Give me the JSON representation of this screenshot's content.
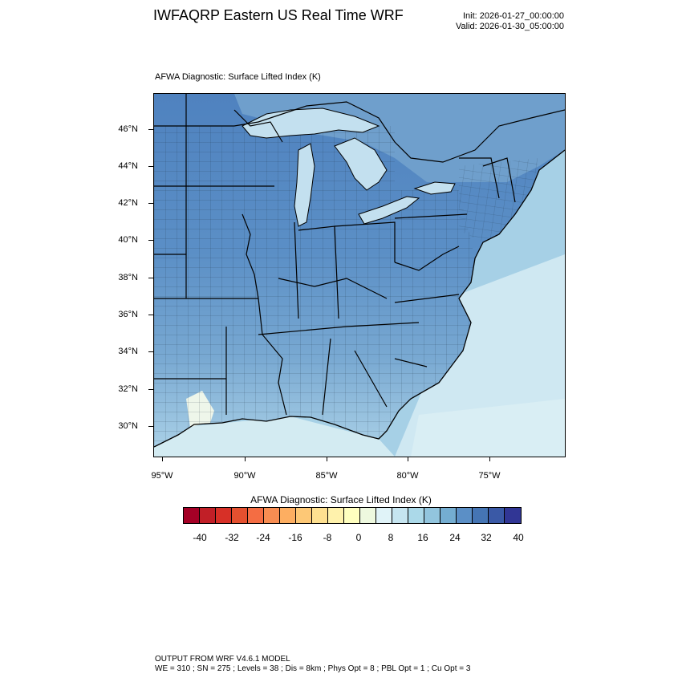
{
  "header": {
    "title": "IWFAQRP Eastern US Real Time WRF",
    "init": "Init: 2026-01-27_00:00:00",
    "valid": "Valid: 2026-01-30_05:00:00"
  },
  "map": {
    "subtitle": "AFWA Diagnostic: Surface Lifted Index   (K)",
    "lat_labels": [
      "46°N",
      "44°N",
      "42°N",
      "40°N",
      "38°N",
      "36°N",
      "34°N",
      "32°N",
      "30°N"
    ],
    "lon_labels": [
      "95°W",
      "90°W",
      "85°W",
      "80°W",
      "75°W"
    ],
    "colors": {
      "land_dark": "#4f82bf",
      "land_mid": "#79a9d2",
      "land_light": "#a8cfe6",
      "water_mid": "#8cbbdc",
      "water_light": "#cde8f2",
      "ocean_pale": "#d9eef4"
    }
  },
  "colorbar": {
    "title": "AFWA Diagnostic: Surface Lifted Index  (K)",
    "labels": [
      "-40",
      "-32",
      "-24",
      "-16",
      "-8",
      "0",
      "8",
      "16",
      "24",
      "32",
      "40"
    ],
    "colors": [
      "#a50026",
      "#c11f27",
      "#d73027",
      "#e4502f",
      "#f46d43",
      "#f88d52",
      "#fdae61",
      "#fdc876",
      "#fee090",
      "#fff2ac",
      "#ffffbf",
      "#eef9df",
      "#e0f3f8",
      "#c6e5f0",
      "#abd9e9",
      "#92c5de",
      "#74add1",
      "#5b8fc6",
      "#4575b4",
      "#3a59a6",
      "#313695"
    ]
  },
  "footer": {
    "line1": "OUTPUT FROM WRF V4.6.1 MODEL",
    "line2": "WE = 310 ; SN = 275 ; Levels = 38 ; Dis = 8km ; Phys Opt = 8 ; PBL Opt = 1 ; Cu Opt = 3"
  }
}
